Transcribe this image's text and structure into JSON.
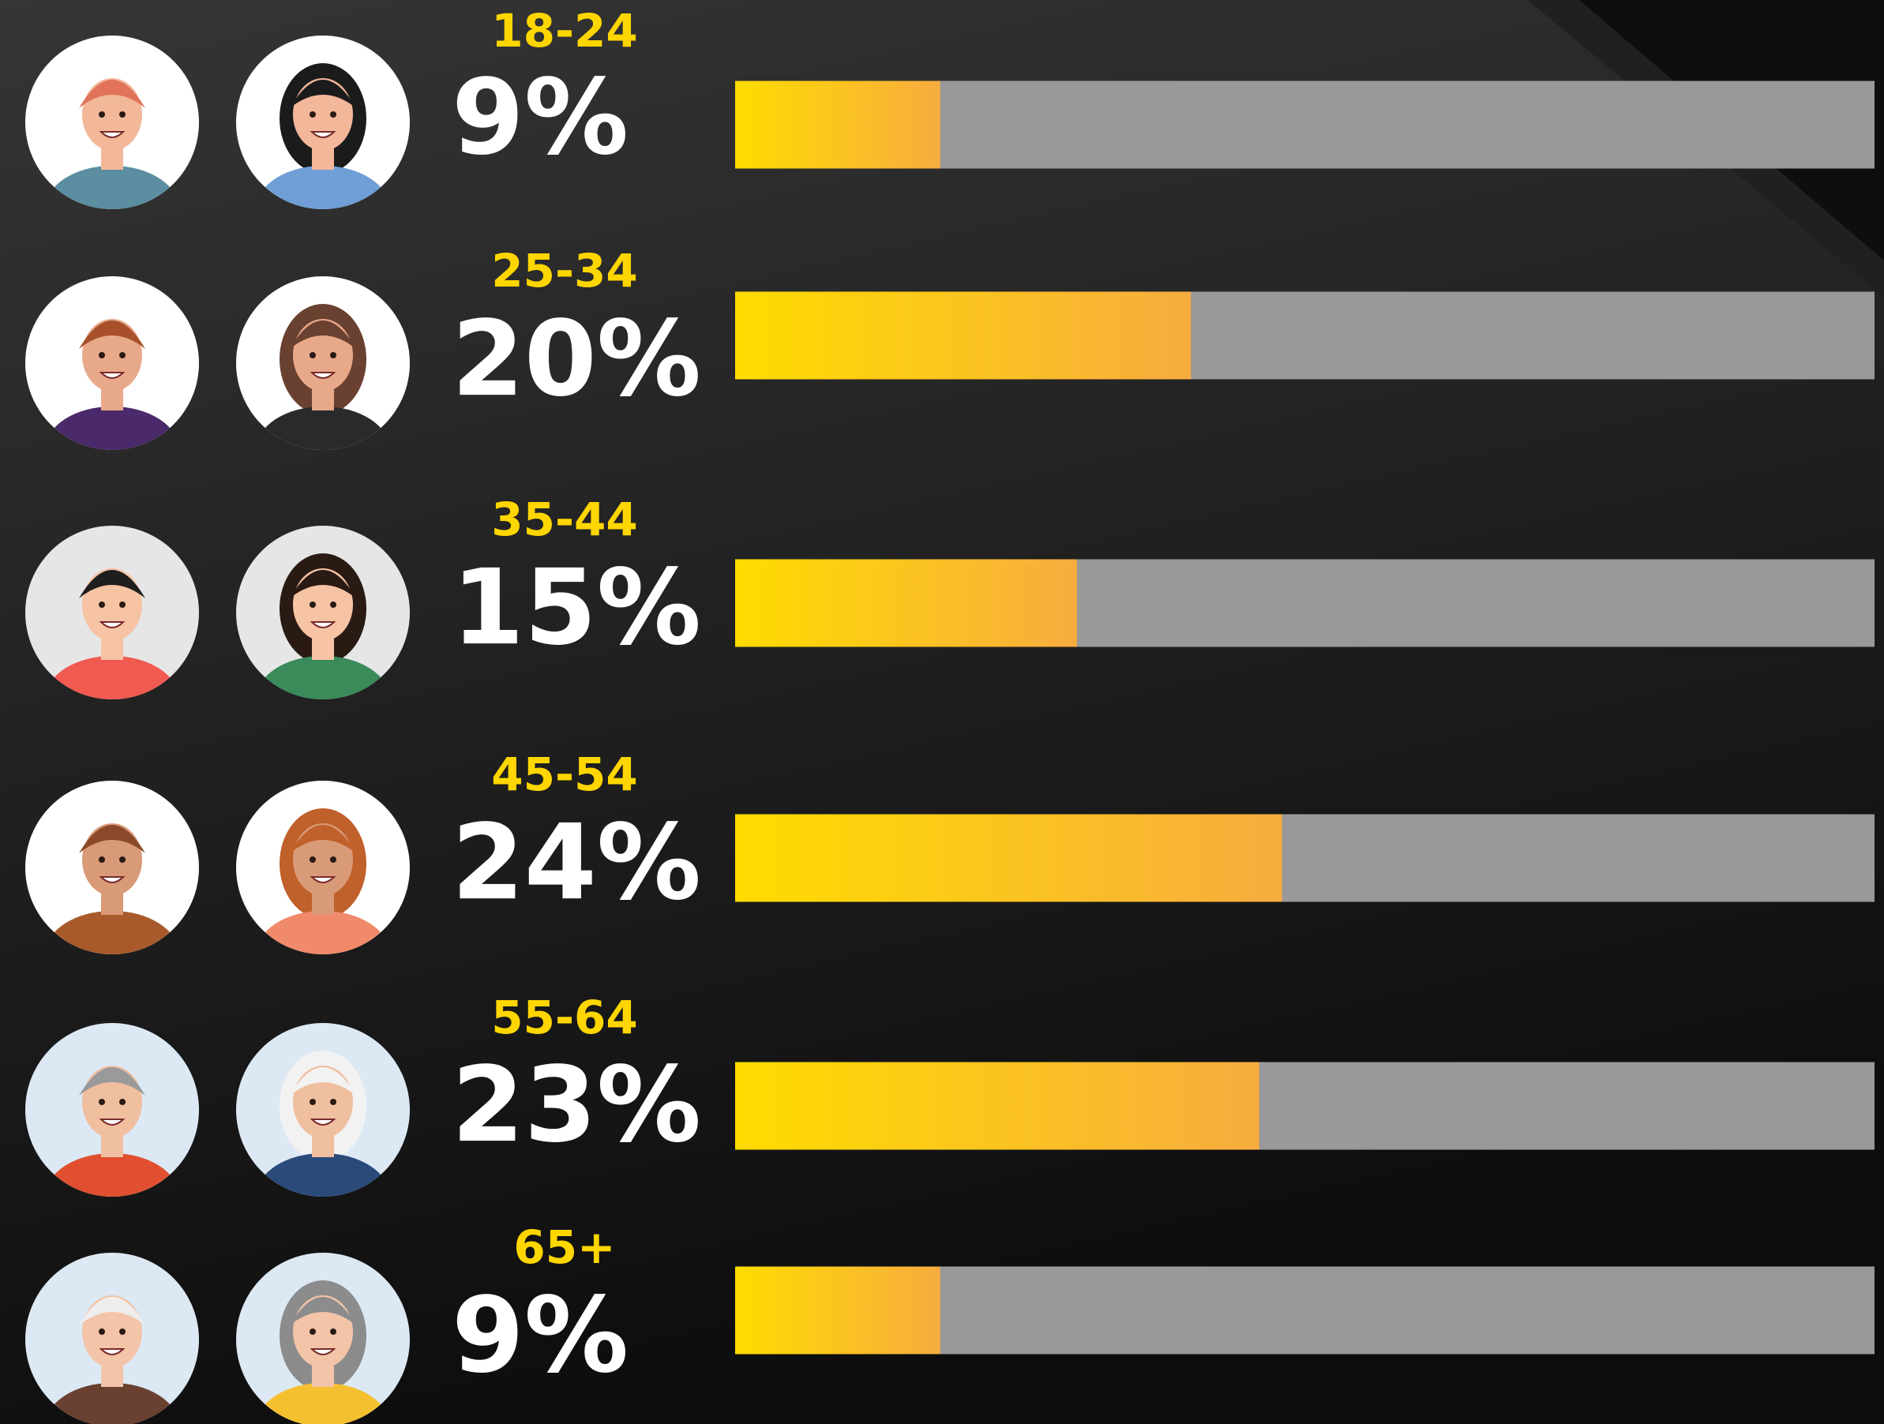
{
  "chart_data": {
    "type": "bar",
    "categories": [
      "18-24",
      "25-34",
      "35-44",
      "45-54",
      "55-64",
      "65+"
    ],
    "values": [
      9,
      20,
      15,
      24,
      23,
      9
    ],
    "value_labels": [
      "9%",
      "20%",
      "15%",
      "24%",
      "23%",
      "9%"
    ],
    "xlim": [
      0,
      50
    ],
    "color_start": "#ffdc00",
    "color_end": "#f7ac3f",
    "track_color": "#999999",
    "category_color": "#ffd600",
    "label_color": "#ffffff"
  }
}
